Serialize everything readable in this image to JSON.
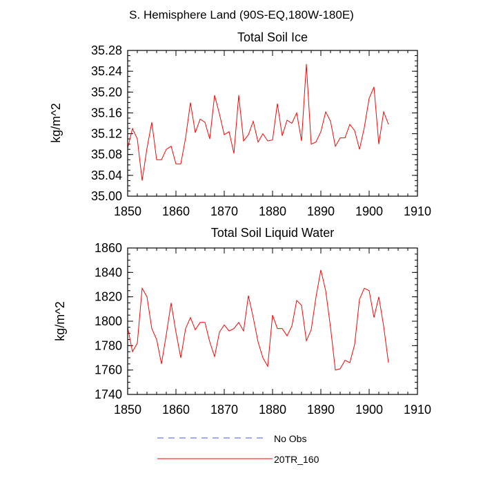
{
  "page_title": "S. Hemisphere Land (90S-EQ,180W-180E)",
  "colors": {
    "model": "#ff0000",
    "obs": "#4a5bd6",
    "axis": "#000000"
  },
  "legend": {
    "entries": [
      {
        "label": "No Obs",
        "style": "dashed",
        "color": "#4a5bd6"
      },
      {
        "label": "20TR_160",
        "style": "solid",
        "color": "#ff0000"
      }
    ]
  },
  "chart_data": [
    {
      "type": "line",
      "title": "Total Soil Ice",
      "ylabel": "kg/m^2",
      "xlim": [
        1850,
        1910
      ],
      "ylim": [
        35.0,
        35.28
      ],
      "xticks": [
        1850,
        1860,
        1870,
        1880,
        1890,
        1900,
        1910
      ],
      "xtick_labels": [
        "1850",
        "1860",
        "1870",
        "1880",
        "1890",
        "1900",
        "1910"
      ],
      "yticks": [
        35.0,
        35.04,
        35.08,
        35.12,
        35.16,
        35.2,
        35.24,
        35.28
      ],
      "ytick_labels": [
        "35.00",
        "35.04",
        "35.08",
        "35.12",
        "35.16",
        "35.20",
        "35.24",
        "35.28"
      ],
      "series": [
        {
          "name": "20TR_160",
          "x_start": 1850,
          "x_step": 1,
          "values": [
            35.092,
            35.13,
            35.11,
            35.03,
            35.092,
            35.142,
            35.07,
            35.07,
            35.09,
            35.096,
            35.062,
            35.062,
            35.112,
            35.18,
            35.122,
            35.148,
            35.142,
            35.11,
            35.194,
            35.158,
            35.118,
            35.124,
            35.082,
            35.194,
            35.106,
            35.118,
            35.144,
            35.104,
            35.12,
            35.106,
            35.108,
            35.178,
            35.116,
            35.146,
            35.14,
            35.16,
            35.106,
            35.254,
            35.1,
            35.104,
            35.124,
            35.162,
            35.144,
            35.096,
            35.112,
            35.112,
            35.138,
            35.126,
            35.09,
            35.132,
            35.188,
            35.21,
            35.1,
            35.162,
            35.138
          ]
        }
      ]
    },
    {
      "type": "line",
      "title": "Total Soil Liquid Water",
      "ylabel": "kg/m^2",
      "xlim": [
        1850,
        1910
      ],
      "ylim": [
        1740,
        1860
      ],
      "xticks": [
        1850,
        1860,
        1870,
        1880,
        1890,
        1900,
        1910
      ],
      "xtick_labels": [
        "1850",
        "1860",
        "1870",
        "1880",
        "1890",
        "1900",
        "1910"
      ],
      "yticks": [
        1740,
        1760,
        1780,
        1800,
        1820,
        1840,
        1860
      ],
      "ytick_labels": [
        "1740",
        "1760",
        "1780",
        "1800",
        "1820",
        "1840",
        "1860"
      ],
      "series": [
        {
          "name": "20TR_160",
          "x_start": 1850,
          "x_step": 1,
          "values": [
            1795,
            1775,
            1782,
            1827,
            1820,
            1794,
            1785,
            1765,
            1789,
            1815,
            1791,
            1770,
            1794,
            1803,
            1793,
            1799,
            1799,
            1783,
            1771,
            1791,
            1797,
            1792,
            1794,
            1799,
            1792,
            1821,
            1803,
            1783,
            1770,
            1763,
            1805,
            1794,
            1794,
            1788,
            1796,
            1817,
            1813,
            1784,
            1793,
            1820,
            1842,
            1825,
            1795,
            1760,
            1761,
            1768,
            1766,
            1781,
            1818,
            1827,
            1825,
            1803,
            1820,
            1796,
            1766
          ]
        }
      ]
    }
  ]
}
